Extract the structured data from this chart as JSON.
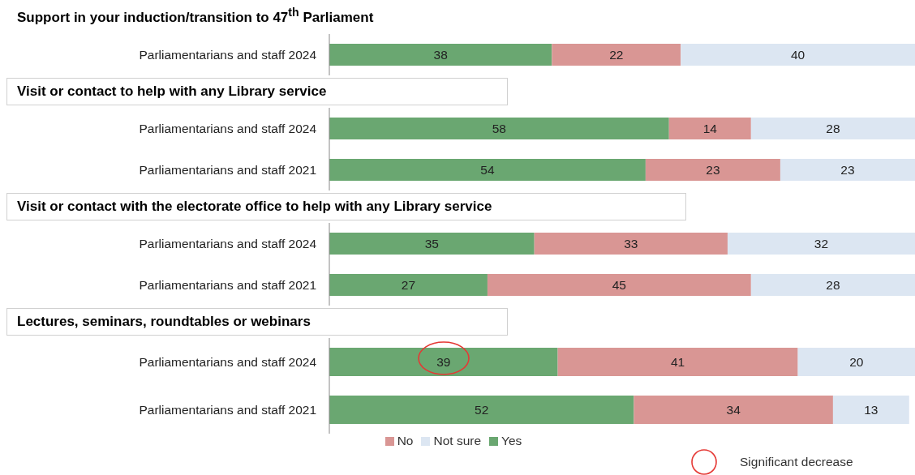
{
  "chart_data": [
    {
      "type": "bar",
      "orientation": "horizontal",
      "stacked": true,
      "data_labels": true,
      "title": "Support in your induction/transition  to 47$^{th}$ Parliament",
      "categories": [
        "Parliamentarians and staff 2024"
      ],
      "series": [
        {
          "color": "#6aa771",
          "values": [
            38
          ]
        },
        {
          "color": "#d99694",
          "values": [
            22
          ]
        },
        {
          "color": "#dce6f2",
          "values": [
            40
          ]
        }
      ]
    },
    {
      "type": "bar",
      "orientation": "horizontal",
      "stacked": true,
      "data_labels": true,
      "title": "Visit or contact to help with any Library service",
      "categories": [
        "Parliamentarians and staff 2024",
        "Parliamentarians and staff 2021"
      ],
      "series": [
        {
          "color": "#6aa771",
          "values": [
            58,
            54
          ]
        },
        {
          "color": "#d99694",
          "values": [
            14,
            23
          ]
        },
        {
          "color": "#dce6f2",
          "values": [
            28,
            23
          ]
        }
      ]
    },
    {
      "type": "bar",
      "orientation": "horizontal",
      "stacked": true,
      "data_labels": true,
      "title": "Visit or contact with the electorate office to help with any Library service",
      "categories": [
        "Parliamentarians and staff 2024",
        "Parliamentarians and staff 2021"
      ],
      "series": [
        {
          "color": "#6aa771",
          "values": [
            35,
            27
          ]
        },
        {
          "color": "#d99694",
          "values": [
            33,
            45
          ]
        },
        {
          "color": "#dce6f2",
          "values": [
            32,
            28
          ]
        }
      ]
    },
    {
      "type": "bar",
      "orientation": "horizontal",
      "stacked": true,
      "data_labels": true,
      "legend": "bottom",
      "title": "Lectures, seminars, roundtables or webinars",
      "categories": [
        "Parliamentarians and staff 2024",
        "Parliamentarians and staff 2021"
      ],
      "series": [
        {
          "name": "Yes",
          "color": "#6aa771",
          "values": [
            39,
            52
          ]
        },
        {
          "name": "No",
          "color": "#d99694",
          "values": [
            41,
            34
          ]
        },
        {
          "name": "Not sure",
          "color": "#dce6f2",
          "values": [
            20,
            13
          ]
        }
      ],
      "annotations": [
        "Significant decrease"
      ]
    }
  ]
}
